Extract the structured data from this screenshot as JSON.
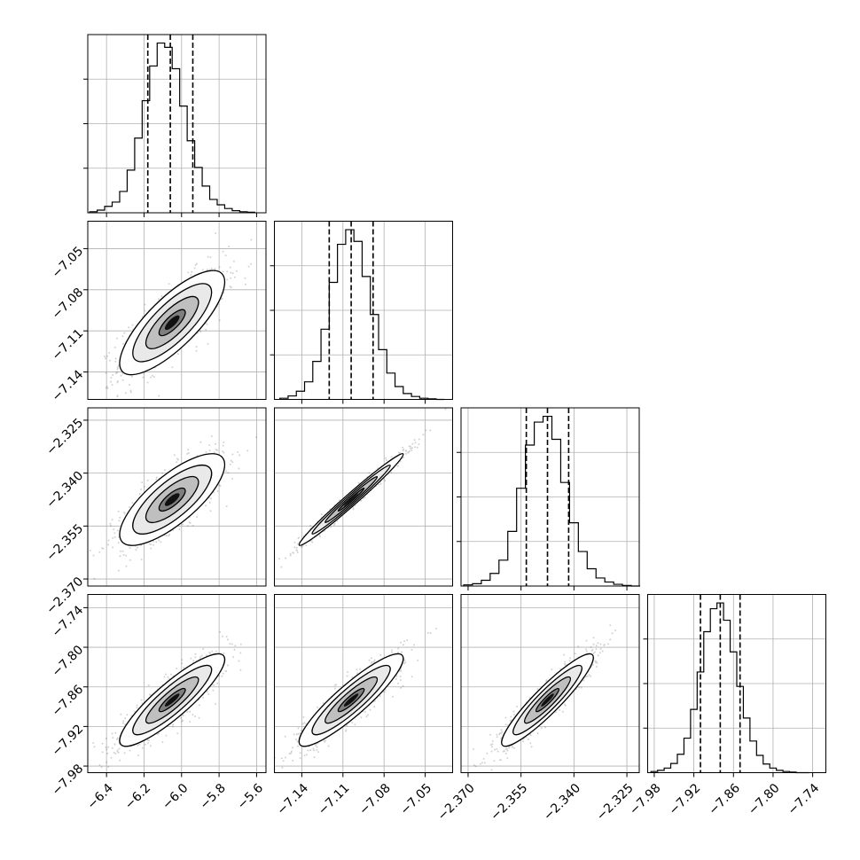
{
  "chart_data": {
    "type": "corner",
    "grid": true,
    "colors": {
      "line": "#000000",
      "grid": "#b0b0b0",
      "points": "#4d4d4d"
    },
    "parameters": [
      {
        "range": [
          -6.5,
          -5.55
        ],
        "ticks": [
          -6.4,
          -6.2,
          -6.0,
          -5.8,
          -5.6
        ],
        "tick_labels": [
          "−6.4",
          "−6.2",
          "−6.0",
          "−5.8",
          "−5.6"
        ],
        "quantiles": [
          -6.18,
          -6.06,
          -5.94
        ],
        "hist_x": [
          -6.47,
          -6.43,
          -6.39,
          -6.35,
          -6.31,
          -6.27,
          -6.23,
          -6.19,
          -6.15,
          -6.11,
          -6.07,
          -6.03,
          -5.99,
          -5.95,
          -5.91,
          -5.87,
          -5.83,
          -5.79,
          -5.75,
          -5.71,
          -5.67,
          -5.63
        ],
        "hist_counts": [
          2,
          5,
          12,
          20,
          40,
          80,
          140,
          210,
          275,
          318,
          310,
          270,
          200,
          135,
          85,
          50,
          25,
          15,
          8,
          4,
          2,
          1
        ]
      },
      {
        "range": [
          -7.16,
          -7.03
        ],
        "ticks": [
          -7.14,
          -7.11,
          -7.08,
          -7.05
        ],
        "tick_labels": [
          "−7.14",
          "−7.11",
          "−7.08",
          "−7.05"
        ],
        "quantiles": [
          -7.12,
          -7.104,
          -7.088
        ],
        "hist_x": [
          -7.153,
          -7.147,
          -7.141,
          -7.135,
          -7.129,
          -7.123,
          -7.117,
          -7.111,
          -7.105,
          -7.099,
          -7.093,
          -7.087,
          -7.081,
          -7.075,
          -7.069,
          -7.063,
          -7.057,
          -7.051,
          -7.045,
          -7.039
        ],
        "hist_counts": [
          2,
          6,
          14,
          30,
          65,
          120,
          200,
          265,
          290,
          270,
          210,
          145,
          85,
          45,
          22,
          10,
          5,
          2,
          1,
          0
        ]
      },
      {
        "range": [
          -2.372,
          -2.3215
        ],
        "ticks": [
          -2.37,
          -2.355,
          -2.34,
          -2.325
        ],
        "tick_labels": [
          "−2.370",
          "−2.355",
          "−2.340",
          "−2.325"
        ],
        "quantiles": [
          -2.3535,
          -2.3475,
          -2.3415
        ],
        "hist_x": [
          -2.37,
          -2.3675,
          -2.365,
          -2.3625,
          -2.36,
          -2.3575,
          -2.355,
          -2.3525,
          -2.35,
          -2.3475,
          -2.345,
          -2.3425,
          -2.34,
          -2.3375,
          -2.335,
          -2.3325,
          -2.33,
          -2.3275,
          -2.325,
          -2.3225
        ],
        "hist_counts": [
          2,
          4,
          10,
          22,
          45,
          95,
          170,
          245,
          285,
          295,
          255,
          180,
          110,
          60,
          30,
          14,
          7,
          3,
          1,
          0
        ]
      },
      {
        "range": [
          -7.99,
          -7.72
        ],
        "ticks": [
          -7.98,
          -7.92,
          -7.86,
          -7.8,
          -7.74
        ],
        "tick_labels": [
          "−7.98",
          "−7.92",
          "−7.86",
          "−7.80",
          "−7.74"
        ],
        "quantiles": [
          -7.91,
          -7.88,
          -7.85
        ],
        "hist_x": [
          -7.98,
          -7.97,
          -7.96,
          -7.95,
          -7.94,
          -7.93,
          -7.92,
          -7.91,
          -7.9,
          -7.89,
          -7.88,
          -7.87,
          -7.86,
          -7.85,
          -7.84,
          -7.83,
          -7.82,
          -7.81,
          -7.8,
          -7.79,
          -7.78,
          -7.77,
          -7.76,
          -7.75
        ],
        "hist_counts": [
          2,
          4,
          8,
          16,
          32,
          60,
          110,
          175,
          245,
          285,
          295,
          265,
          210,
          150,
          95,
          55,
          30,
          15,
          8,
          4,
          2,
          1,
          0,
          0
        ]
      }
    ],
    "pairs": [
      {
        "col": 0,
        "row": 1,
        "mean": [
          -6.05,
          -7.104
        ],
        "sd": [
          0.14,
          0.019
        ],
        "rho": 0.78
      },
      {
        "col": 0,
        "row": 2,
        "mean": [
          -6.05,
          -2.3475
        ],
        "sd": [
          0.14,
          0.0065
        ],
        "rho": 0.76
      },
      {
        "col": 1,
        "row": 2,
        "mean": [
          -7.104,
          -2.3475
        ],
        "sd": [
          0.019,
          0.0065
        ],
        "rho": 0.985
      },
      {
        "col": 0,
        "row": 3,
        "mean": [
          -6.05,
          -7.88
        ],
        "sd": [
          0.14,
          0.035
        ],
        "rho": 0.88
      },
      {
        "col": 1,
        "row": 3,
        "mean": [
          -7.104,
          -7.88
        ],
        "sd": [
          0.019,
          0.035
        ],
        "rho": 0.9
      },
      {
        "col": 2,
        "row": 3,
        "mean": [
          -2.3475,
          -7.88
        ],
        "sd": [
          0.0065,
          0.035
        ],
        "rho": 0.92
      }
    ],
    "contour_levels_sigma": [
      0.5,
      1.0,
      1.5,
      2.0
    ],
    "title": "",
    "xlabel": "",
    "ylabel": ""
  }
}
